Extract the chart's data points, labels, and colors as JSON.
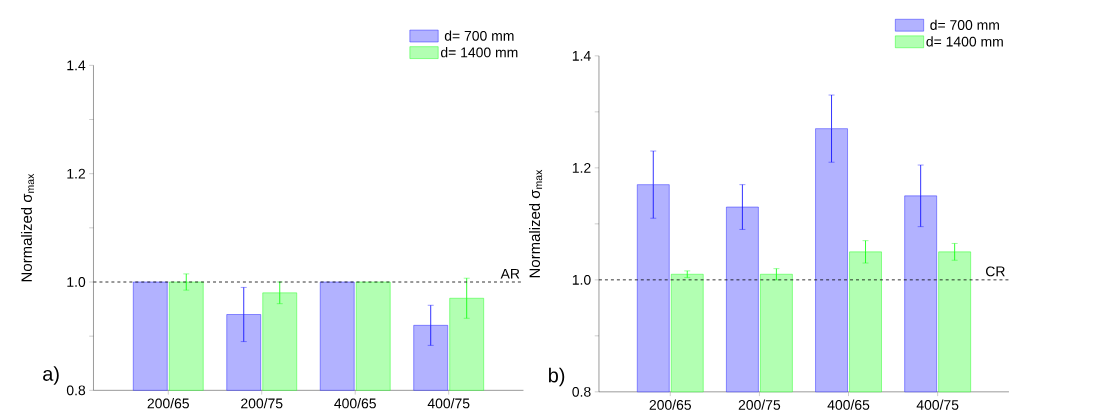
{
  "chart_data": [
    {
      "type": "bar",
      "ylabel": "Normalized σ$_{max}$",
      "categories": [
        "200/65",
        "200/75",
        "400/65",
        "400/75"
      ],
      "series": [
        {
          "name": "d= 700 mm",
          "color": "#0000ff",
          "values": [
            1.0,
            0.94,
            1.0,
            0.92
          ],
          "errors": [
            null,
            0.05,
            null,
            0.037
          ]
        },
        {
          "name": "d= 1400 mm",
          "color": "#00ff00",
          "values": [
            1.0,
            0.98,
            1.0,
            0.97
          ],
          "errors": [
            0.015,
            0.02,
            null,
            0.037
          ]
        }
      ],
      "ylim": [
        0.8,
        1.4
      ],
      "yticks": [
        0.8,
        {
          "value": 0.9,
          "label": null
        },
        {
          "value": 1.0,
          "label": "1.0"
        },
        {
          "value": 1.1,
          "label": null
        },
        1.2,
        {
          "value": 1.3,
          "label": null
        },
        1.4
      ],
      "ref_lines": [
        {
          "axis": "y",
          "value": 1.0,
          "label": "AR",
          "line_style": "dashed"
        }
      ],
      "legend": "top right",
      "grid": false,
      "annotations": [
        "a)"
      ]
    },
    {
      "type": "bar",
      "ylabel": "Normalized σ$_{max}$",
      "categories": [
        "200/65",
        "200/75",
        "400/65",
        "400/75"
      ],
      "series": [
        {
          "name": "d= 700 mm",
          "color": "#0000ff",
          "values": [
            1.17,
            1.13,
            1.27,
            1.15
          ],
          "errors": [
            0.06,
            0.04,
            0.06,
            0.055
          ]
        },
        {
          "name": "d= 1400 mm",
          "color": "#00ff00",
          "values": [
            1.01,
            1.01,
            1.05,
            1.05
          ],
          "errors": [
            0.006,
            0.01,
            0.02,
            0.015
          ]
        }
      ],
      "ylim": [
        0.8,
        1.4
      ],
      "yticks": [
        0.8,
        {
          "value": 0.9,
          "label": null
        },
        {
          "value": 1.0,
          "label": "1.0"
        },
        {
          "value": 1.1,
          "label": null
        },
        1.2,
        {
          "value": 1.3,
          "label": null
        },
        1.4
      ],
      "ref_lines": [
        {
          "axis": "y",
          "value": 1.0,
          "label": "CR",
          "line_style": "dashed"
        }
      ],
      "legend": "top right",
      "grid": false,
      "annotations": [
        "b)"
      ]
    }
  ]
}
